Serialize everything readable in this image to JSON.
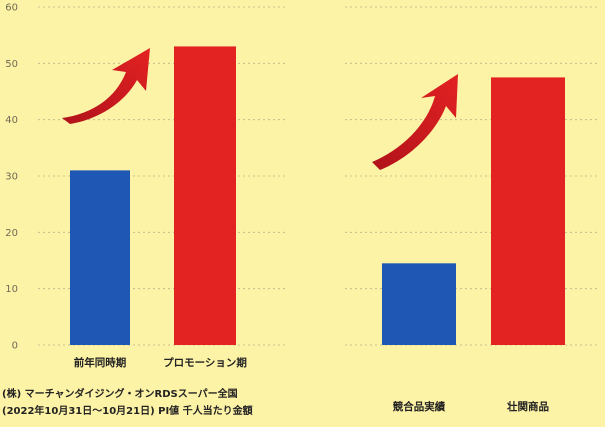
{
  "chart_data": [
    {
      "type": "bar",
      "categories": [
        "前年同時期",
        "プロモーション期"
      ],
      "values": [
        31,
        53
      ],
      "colors": [
        "#1f57b5",
        "#e32222"
      ],
      "ylim": [
        0,
        60
      ],
      "yticks": [
        0,
        10,
        20,
        30,
        40,
        50,
        60
      ],
      "grid": true,
      "grid_style": "dashed",
      "arrow": "curved-up-red"
    },
    {
      "type": "bar",
      "categories": [
        "競合品実績",
        "壮関商品"
      ],
      "values": [
        14.5,
        47.5
      ],
      "colors": [
        "#1f57b5",
        "#e32222"
      ],
      "ylim": [
        0,
        60
      ],
      "grid": true,
      "grid_style": "dashed",
      "arrow": "curved-up-red"
    }
  ],
  "notes": [
    "(株) マーチャンダイジング・オンRDSスーパー全国",
    "(2022年10月31日〜10月21日) PI値 千人当たり金額"
  ]
}
